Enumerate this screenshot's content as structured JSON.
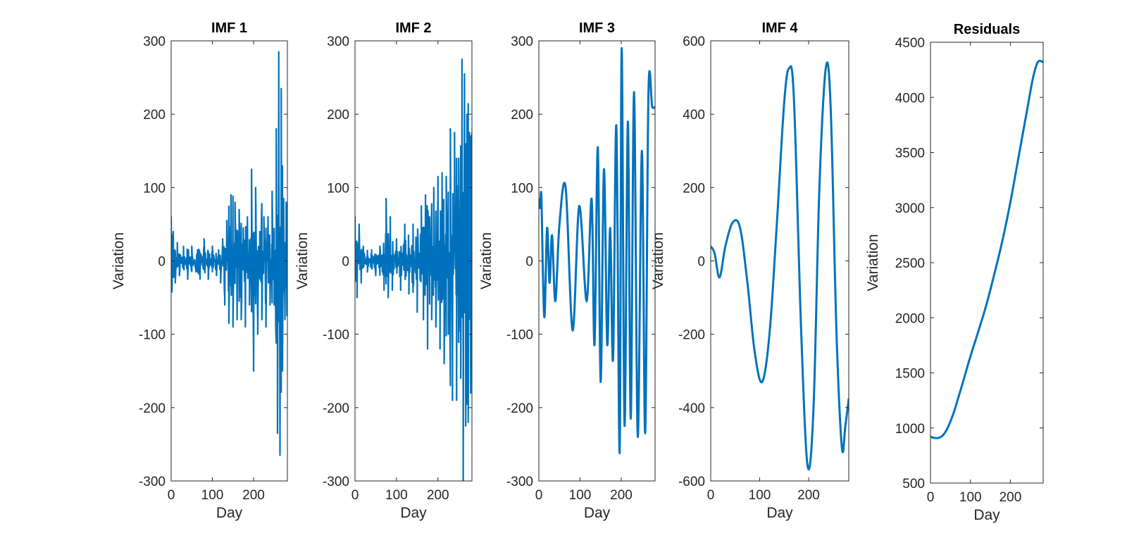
{
  "figure": {
    "background": "#ffffff",
    "line_color": "#0072BD",
    "axis_color": "#262626"
  },
  "chart_data": [
    {
      "type": "line",
      "title": "IMF 1",
      "xlabel": "Day",
      "ylabel": "Variation",
      "xlim": [
        0,
        282
      ],
      "ylim": [
        -300,
        300
      ],
      "xticks": [
        0,
        100,
        200
      ],
      "yticks": [
        -300,
        -200,
        -100,
        0,
        100,
        200,
        300
      ],
      "ytick_labels": [
        "-300",
        "-200",
        "-100",
        "0",
        "100",
        "200",
        "300"
      ],
      "grid": false,
      "series": [
        {
          "color": "#0072BD",
          "envelope": [
            [
              0,
              60
            ],
            [
              5,
              40
            ],
            [
              10,
              -30
            ],
            [
              15,
              25
            ],
            [
              20,
              -20
            ],
            [
              30,
              20
            ],
            [
              40,
              -25
            ],
            [
              50,
              20
            ],
            [
              60,
              -15
            ],
            [
              70,
              -25
            ],
            [
              80,
              30
            ],
            [
              90,
              -25
            ],
            [
              100,
              20
            ],
            [
              110,
              -20
            ],
            [
              115,
              15
            ],
            [
              120,
              -30
            ],
            [
              125,
              30
            ],
            [
              130,
              -60
            ],
            [
              135,
              55
            ],
            [
              140,
              -85
            ],
            [
              145,
              90
            ],
            [
              150,
              -90
            ],
            [
              155,
              80
            ],
            [
              160,
              -80
            ],
            [
              165,
              70
            ],
            [
              170,
              -80
            ],
            [
              175,
              45
            ],
            [
              180,
              -90
            ],
            [
              185,
              60
            ],
            [
              190,
              -60
            ],
            [
              195,
              125
            ],
            [
              200,
              -150
            ],
            [
              205,
              100
            ],
            [
              210,
              -100
            ],
            [
              215,
              40
            ],
            [
              220,
              -80
            ],
            [
              225,
              60
            ],
            [
              230,
              -90
            ],
            [
              235,
              60
            ],
            [
              240,
              -60
            ],
            [
              245,
              95
            ],
            [
              250,
              -60
            ],
            [
              255,
              180
            ],
            [
              258,
              -235
            ],
            [
              261,
              285
            ],
            [
              264,
              -265
            ],
            [
              267,
              235
            ],
            [
              270,
              -150
            ],
            [
              273,
              85
            ],
            [
              276,
              -80
            ],
            [
              279,
              80
            ],
            [
              282,
              80
            ]
          ]
        }
      ]
    },
    {
      "type": "line",
      "title": "IMF 2",
      "xlabel": "Day",
      "ylabel": "Variation",
      "xlim": [
        0,
        282
      ],
      "ylim": [
        -300,
        300
      ],
      "xticks": [
        0,
        100,
        200
      ],
      "yticks": [
        -300,
        -200,
        -100,
        0,
        100,
        200,
        300
      ],
      "ytick_labels": [
        "-300",
        "-200",
        "-100",
        "0",
        "100",
        "200",
        "300"
      ],
      "grid": false,
      "series": [
        {
          "color": "#0072BD",
          "envelope": [
            [
              0,
              60
            ],
            [
              5,
              -50
            ],
            [
              10,
              50
            ],
            [
              15,
              -30
            ],
            [
              20,
              20
            ],
            [
              30,
              -15
            ],
            [
              40,
              15
            ],
            [
              50,
              -20
            ],
            [
              60,
              20
            ],
            [
              70,
              -40
            ],
            [
              75,
              85
            ],
            [
              80,
              -50
            ],
            [
              85,
              60
            ],
            [
              90,
              -40
            ],
            [
              100,
              30
            ],
            [
              110,
              -40
            ],
            [
              120,
              50
            ],
            [
              130,
              -45
            ],
            [
              140,
              50
            ],
            [
              150,
              -70
            ],
            [
              160,
              75
            ],
            [
              165,
              -80
            ],
            [
              170,
              90
            ],
            [
              175,
              -120
            ],
            [
              180,
              60
            ],
            [
              185,
              -80
            ],
            [
              190,
              100
            ],
            [
              195,
              -90
            ],
            [
              200,
              115
            ],
            [
              205,
              -120
            ],
            [
              210,
              120
            ],
            [
              215,
              -140
            ],
            [
              220,
              115
            ],
            [
              225,
              -100
            ],
            [
              230,
              180
            ],
            [
              235,
              -190
            ],
            [
              240,
              175
            ],
            [
              245,
              -190
            ],
            [
              250,
              140
            ],
            [
              255,
              -160
            ],
            [
              258,
              275
            ],
            [
              261,
              -300
            ],
            [
              264,
              255
            ],
            [
              267,
              -225
            ],
            [
              270,
              200
            ],
            [
              273,
              -220
            ],
            [
              276,
              175
            ],
            [
              279,
              -180
            ],
            [
              282,
              175
            ]
          ]
        }
      ]
    },
    {
      "type": "line",
      "title": "IMF 3",
      "xlabel": "Day",
      "ylabel": "Variation",
      "xlim": [
        0,
        282
      ],
      "ylim": [
        -300,
        300
      ],
      "xticks": [
        0,
        100,
        200
      ],
      "yticks": [
        -300,
        -200,
        -100,
        0,
        100,
        200,
        300
      ],
      "ytick_labels": [
        "-300",
        "-200",
        "-100",
        "0",
        "100",
        "200",
        "300"
      ],
      "grid": false,
      "series": [
        {
          "color": "#0072BD",
          "points": [
            [
              0,
              85
            ],
            [
              3,
              72
            ],
            [
              6,
              90
            ],
            [
              10,
              -20
            ],
            [
              14,
              -75
            ],
            [
              20,
              45
            ],
            [
              26,
              -30
            ],
            [
              32,
              35
            ],
            [
              40,
              -55
            ],
            [
              50,
              50
            ],
            [
              65,
              100
            ],
            [
              82,
              -95
            ],
            [
              98,
              75
            ],
            [
              116,
              -55
            ],
            [
              128,
              85
            ],
            [
              135,
              -115
            ],
            [
              143,
              155
            ],
            [
              150,
              -165
            ],
            [
              158,
              125
            ],
            [
              166,
              -115
            ],
            [
              173,
              45
            ],
            [
              180,
              -135
            ],
            [
              188,
              185
            ],
            [
              196,
              -262
            ],
            [
              201,
              290
            ],
            [
              208,
              -225
            ],
            [
              216,
              190
            ],
            [
              223,
              -215
            ],
            [
              231,
              230
            ],
            [
              240,
              -240
            ],
            [
              250,
              150
            ],
            [
              258,
              -235
            ],
            [
              266,
              230
            ],
            [
              275,
              210
            ],
            [
              282,
              210
            ]
          ]
        }
      ]
    },
    {
      "type": "line",
      "title": "IMF 4",
      "xlabel": "Day",
      "ylabel": "Variation",
      "xlim": [
        0,
        282
      ],
      "ylim": [
        -600,
        600
      ],
      "xticks": [
        0,
        100,
        200
      ],
      "yticks": [
        -600,
        -400,
        -200,
        0,
        200,
        400,
        600
      ],
      "ytick_labels": [
        "-600",
        "-400",
        "-200",
        "0",
        "200",
        "400",
        "600"
      ],
      "grid": false,
      "series": [
        {
          "color": "#0072BD",
          "points": [
            [
              0,
              40
            ],
            [
              8,
              20
            ],
            [
              18,
              -45
            ],
            [
              30,
              40
            ],
            [
              45,
              105
            ],
            [
              60,
              90
            ],
            [
              75,
              -60
            ],
            [
              90,
              -250
            ],
            [
              105,
              -330
            ],
            [
              120,
              -200
            ],
            [
              135,
              100
            ],
            [
              150,
              430
            ],
            [
              160,
              525
            ],
            [
              170,
              440
            ],
            [
              185,
              -200
            ],
            [
              198,
              -560
            ],
            [
              210,
              -400
            ],
            [
              222,
              200
            ],
            [
              235,
              525
            ],
            [
              245,
              420
            ],
            [
              257,
              -200
            ],
            [
              268,
              -510
            ],
            [
              275,
              -450
            ],
            [
              282,
              -375
            ]
          ]
        }
      ]
    },
    {
      "type": "line",
      "title": "Residuals",
      "xlabel": "Day",
      "ylabel": "",
      "xlim": [
        0,
        282
      ],
      "ylim": [
        500,
        4500
      ],
      "xticks": [
        0,
        100,
        200
      ],
      "yticks": [
        500,
        1000,
        1500,
        2000,
        2500,
        3000,
        3500,
        4000,
        4500
      ],
      "ytick_labels": [
        "500",
        "1000",
        "1500",
        "2000",
        "2500",
        "3000",
        "3500",
        "4000",
        "4500"
      ],
      "grid": false,
      "series": [
        {
          "color": "#0072BD",
          "points": [
            [
              0,
              920
            ],
            [
              10,
              910
            ],
            [
              20,
              910
            ],
            [
              30,
              930
            ],
            [
              40,
              980
            ],
            [
              50,
              1060
            ],
            [
              60,
              1160
            ],
            [
              70,
              1280
            ],
            [
              80,
              1400
            ],
            [
              100,
              1650
            ],
            [
              120,
              1880
            ],
            [
              140,
              2120
            ],
            [
              160,
              2400
            ],
            [
              180,
              2700
            ],
            [
              200,
              3050
            ],
            [
              220,
              3450
            ],
            [
              240,
              3850
            ],
            [
              255,
              4150
            ],
            [
              265,
              4290
            ],
            [
              272,
              4330
            ],
            [
              282,
              4320
            ]
          ]
        }
      ]
    }
  ],
  "residuals_ylabel": "Variation"
}
